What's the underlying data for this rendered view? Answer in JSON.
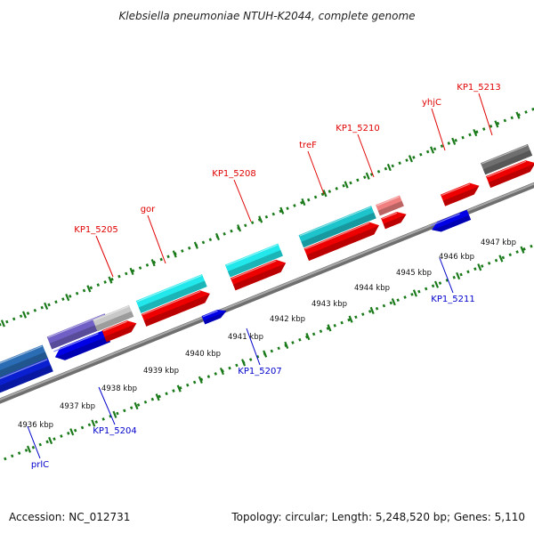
{
  "header": {
    "title": "Klebsiella pneumoniae NTUH-K2044, complete genome"
  },
  "footer": {
    "accession": "Accession: NC_012731",
    "topology": "Topology: circular; Length: 5,248,520 bp; Genes: 5,110"
  },
  "axis": {
    "unit": "kbp",
    "ticks": [
      {
        "label": "4936 kbp"
      },
      {
        "label": "4937 kbp"
      },
      {
        "label": "4938 kbp"
      },
      {
        "label": "4939 kbp"
      },
      {
        "label": "4940 kbp"
      },
      {
        "label": "4941 kbp"
      },
      {
        "label": "4942 kbp"
      },
      {
        "label": "4943 kbp"
      },
      {
        "label": "4944 kbp"
      },
      {
        "label": "4945 kbp"
      },
      {
        "label": "4946 kbp"
      },
      {
        "label": "4947 kbp"
      }
    ]
  },
  "colors": {
    "forward_label": "#e00000",
    "reverse_label": "#0000cc",
    "backbone": "#8c8c8c",
    "tick": "#1a7a1a"
  },
  "genes": [
    {
      "name": "KP1_5205",
      "strand": "forward",
      "color": "#e00000"
    },
    {
      "name": "gor",
      "strand": "forward",
      "color": "#e00000"
    },
    {
      "name": "KP1_5208",
      "strand": "forward",
      "color": "#e00000"
    },
    {
      "name": "treF",
      "strand": "forward",
      "color": "#e00000"
    },
    {
      "name": "KP1_5210",
      "strand": "forward",
      "color": "#e00000"
    },
    {
      "name": "yhjC",
      "strand": "forward",
      "color": "#e00000"
    },
    {
      "name": "KP1_5213",
      "strand": "forward",
      "color": "#e00000"
    },
    {
      "name": "KP1_5211",
      "strand": "reverse",
      "color": "#0000cc"
    },
    {
      "name": "KP1_5207",
      "strand": "reverse",
      "color": "#0000cc"
    },
    {
      "name": "KP1_5204",
      "strand": "reverse",
      "color": "#0000cc"
    },
    {
      "name": "prlC",
      "strand": "reverse",
      "color": "#0000cc"
    }
  ]
}
